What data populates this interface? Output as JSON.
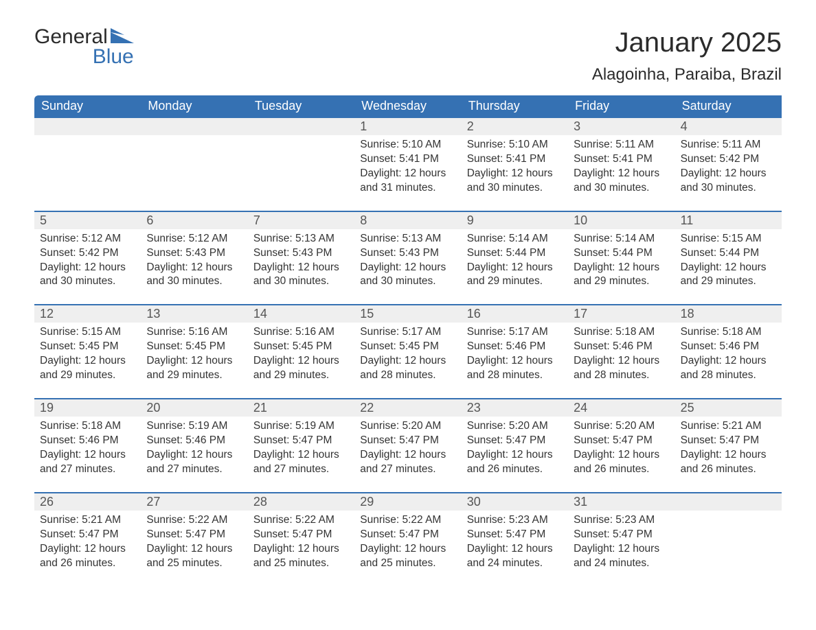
{
  "logo": {
    "word1": "General",
    "word2": "Blue"
  },
  "title": "January 2025",
  "location": "Alagoinha, Paraiba, Brazil",
  "colors": {
    "header_bg": "#3571b3",
    "row_border": "#3571b3",
    "numbar_bg": "#efefef",
    "text": "#333333"
  },
  "day_headers": [
    "Sunday",
    "Monday",
    "Tuesday",
    "Wednesday",
    "Thursday",
    "Friday",
    "Saturday"
  ],
  "weeks": [
    [
      null,
      null,
      null,
      {
        "n": "1",
        "sr": "Sunrise: 5:10 AM",
        "ss": "Sunset: 5:41 PM",
        "dl": "Daylight: 12 hours and 31 minutes."
      },
      {
        "n": "2",
        "sr": "Sunrise: 5:10 AM",
        "ss": "Sunset: 5:41 PM",
        "dl": "Daylight: 12 hours and 30 minutes."
      },
      {
        "n": "3",
        "sr": "Sunrise: 5:11 AM",
        "ss": "Sunset: 5:41 PM",
        "dl": "Daylight: 12 hours and 30 minutes."
      },
      {
        "n": "4",
        "sr": "Sunrise: 5:11 AM",
        "ss": "Sunset: 5:42 PM",
        "dl": "Daylight: 12 hours and 30 minutes."
      }
    ],
    [
      {
        "n": "5",
        "sr": "Sunrise: 5:12 AM",
        "ss": "Sunset: 5:42 PM",
        "dl": "Daylight: 12 hours and 30 minutes."
      },
      {
        "n": "6",
        "sr": "Sunrise: 5:12 AM",
        "ss": "Sunset: 5:43 PM",
        "dl": "Daylight: 12 hours and 30 minutes."
      },
      {
        "n": "7",
        "sr": "Sunrise: 5:13 AM",
        "ss": "Sunset: 5:43 PM",
        "dl": "Daylight: 12 hours and 30 minutes."
      },
      {
        "n": "8",
        "sr": "Sunrise: 5:13 AM",
        "ss": "Sunset: 5:43 PM",
        "dl": "Daylight: 12 hours and 30 minutes."
      },
      {
        "n": "9",
        "sr": "Sunrise: 5:14 AM",
        "ss": "Sunset: 5:44 PM",
        "dl": "Daylight: 12 hours and 29 minutes."
      },
      {
        "n": "10",
        "sr": "Sunrise: 5:14 AM",
        "ss": "Sunset: 5:44 PM",
        "dl": "Daylight: 12 hours and 29 minutes."
      },
      {
        "n": "11",
        "sr": "Sunrise: 5:15 AM",
        "ss": "Sunset: 5:44 PM",
        "dl": "Daylight: 12 hours and 29 minutes."
      }
    ],
    [
      {
        "n": "12",
        "sr": "Sunrise: 5:15 AM",
        "ss": "Sunset: 5:45 PM",
        "dl": "Daylight: 12 hours and 29 minutes."
      },
      {
        "n": "13",
        "sr": "Sunrise: 5:16 AM",
        "ss": "Sunset: 5:45 PM",
        "dl": "Daylight: 12 hours and 29 minutes."
      },
      {
        "n": "14",
        "sr": "Sunrise: 5:16 AM",
        "ss": "Sunset: 5:45 PM",
        "dl": "Daylight: 12 hours and 29 minutes."
      },
      {
        "n": "15",
        "sr": "Sunrise: 5:17 AM",
        "ss": "Sunset: 5:45 PM",
        "dl": "Daylight: 12 hours and 28 minutes."
      },
      {
        "n": "16",
        "sr": "Sunrise: 5:17 AM",
        "ss": "Sunset: 5:46 PM",
        "dl": "Daylight: 12 hours and 28 minutes."
      },
      {
        "n": "17",
        "sr": "Sunrise: 5:18 AM",
        "ss": "Sunset: 5:46 PM",
        "dl": "Daylight: 12 hours and 28 minutes."
      },
      {
        "n": "18",
        "sr": "Sunrise: 5:18 AM",
        "ss": "Sunset: 5:46 PM",
        "dl": "Daylight: 12 hours and 28 minutes."
      }
    ],
    [
      {
        "n": "19",
        "sr": "Sunrise: 5:18 AM",
        "ss": "Sunset: 5:46 PM",
        "dl": "Daylight: 12 hours and 27 minutes."
      },
      {
        "n": "20",
        "sr": "Sunrise: 5:19 AM",
        "ss": "Sunset: 5:46 PM",
        "dl": "Daylight: 12 hours and 27 minutes."
      },
      {
        "n": "21",
        "sr": "Sunrise: 5:19 AM",
        "ss": "Sunset: 5:47 PM",
        "dl": "Daylight: 12 hours and 27 minutes."
      },
      {
        "n": "22",
        "sr": "Sunrise: 5:20 AM",
        "ss": "Sunset: 5:47 PM",
        "dl": "Daylight: 12 hours and 27 minutes."
      },
      {
        "n": "23",
        "sr": "Sunrise: 5:20 AM",
        "ss": "Sunset: 5:47 PM",
        "dl": "Daylight: 12 hours and 26 minutes."
      },
      {
        "n": "24",
        "sr": "Sunrise: 5:20 AM",
        "ss": "Sunset: 5:47 PM",
        "dl": "Daylight: 12 hours and 26 minutes."
      },
      {
        "n": "25",
        "sr": "Sunrise: 5:21 AM",
        "ss": "Sunset: 5:47 PM",
        "dl": "Daylight: 12 hours and 26 minutes."
      }
    ],
    [
      {
        "n": "26",
        "sr": "Sunrise: 5:21 AM",
        "ss": "Sunset: 5:47 PM",
        "dl": "Daylight: 12 hours and 26 minutes."
      },
      {
        "n": "27",
        "sr": "Sunrise: 5:22 AM",
        "ss": "Sunset: 5:47 PM",
        "dl": "Daylight: 12 hours and 25 minutes."
      },
      {
        "n": "28",
        "sr": "Sunrise: 5:22 AM",
        "ss": "Sunset: 5:47 PM",
        "dl": "Daylight: 12 hours and 25 minutes."
      },
      {
        "n": "29",
        "sr": "Sunrise: 5:22 AM",
        "ss": "Sunset: 5:47 PM",
        "dl": "Daylight: 12 hours and 25 minutes."
      },
      {
        "n": "30",
        "sr": "Sunrise: 5:23 AM",
        "ss": "Sunset: 5:47 PM",
        "dl": "Daylight: 12 hours and 24 minutes."
      },
      {
        "n": "31",
        "sr": "Sunrise: 5:23 AM",
        "ss": "Sunset: 5:47 PM",
        "dl": "Daylight: 12 hours and 24 minutes."
      },
      null
    ]
  ]
}
